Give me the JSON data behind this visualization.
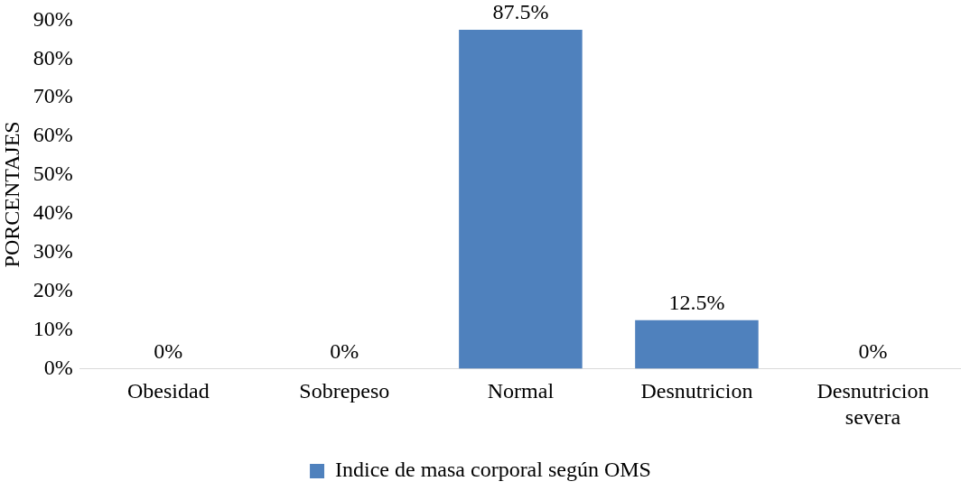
{
  "chart_data": {
    "type": "bar",
    "ylabel": "PORCENTAJES",
    "categories": [
      "Obesidad",
      "Sobrepeso",
      "Normal",
      "Desnutricion",
      "Desnutricion severa"
    ],
    "series": [
      {
        "name": "Indice de masa corporal según OMS",
        "color": "#4f81bd",
        "values": [
          0,
          0,
          87.5,
          12.5,
          0
        ],
        "value_labels": [
          "0%",
          "0%",
          "87.5%",
          "12.5%",
          "0%"
        ]
      }
    ],
    "ylim": [
      0,
      90
    ],
    "yticks": [
      {
        "value": 0,
        "label": "0%"
      },
      {
        "value": 10,
        "label": "10%"
      },
      {
        "value": 20,
        "label": "20%"
      },
      {
        "value": 30,
        "label": "30%"
      },
      {
        "value": 40,
        "label": "40%"
      },
      {
        "value": 50,
        "label": "50%"
      },
      {
        "value": 60,
        "label": "60%"
      },
      {
        "value": 70,
        "label": "70%"
      },
      {
        "value": 80,
        "label": "80%"
      },
      {
        "value": 90,
        "label": "90%"
      }
    ],
    "grid": false,
    "legend": "bottom"
  }
}
